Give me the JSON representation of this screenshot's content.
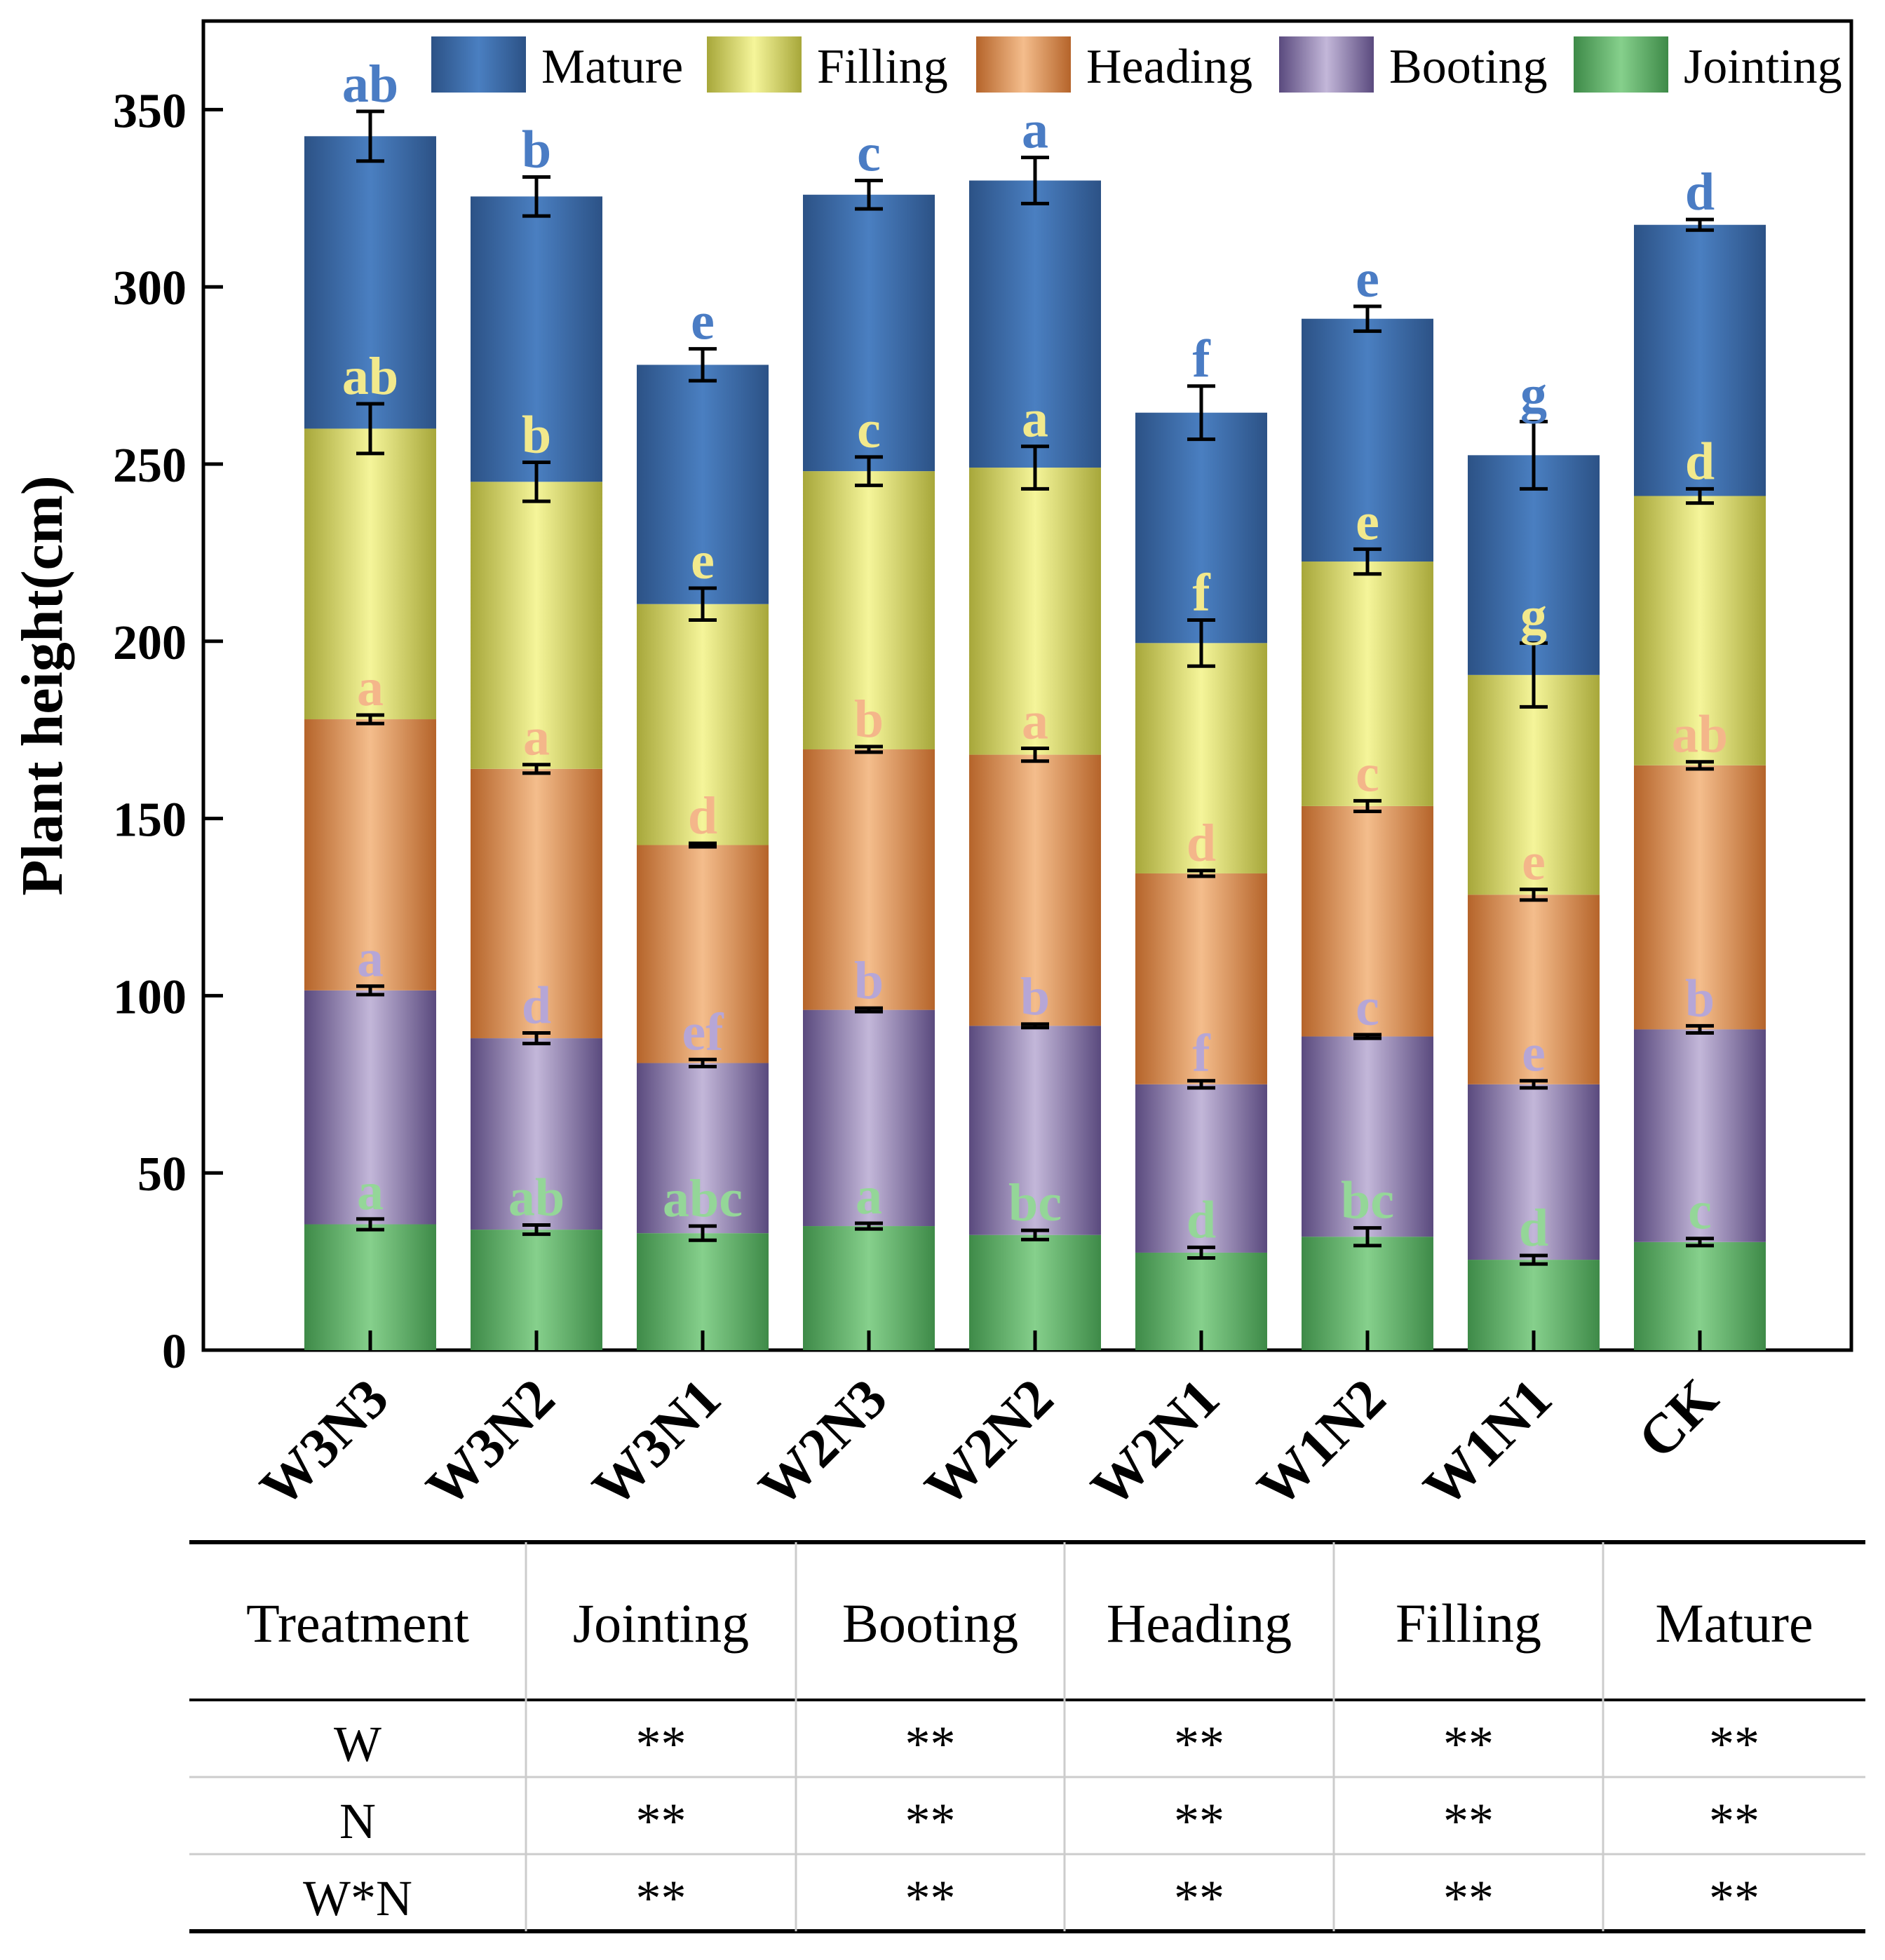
{
  "chart_data": {
    "type": "bar",
    "stacked": true,
    "ylabel": "Plant height(cm)",
    "xlabel": "",
    "ylim": [
      0,
      375
    ],
    "yticks": [
      0,
      50,
      100,
      150,
      200,
      250,
      300,
      350
    ],
    "categories": [
      "W3N3",
      "W3N2",
      "W3N1",
      "W2N3",
      "W2N2",
      "W2N1",
      "W1N2",
      "W1N1",
      "CK"
    ],
    "legend_position": "top",
    "series": [
      {
        "name": "Jointing",
        "color_dark": "#3e8a48",
        "color_light": "#86d08c",
        "label_color": "#94d698",
        "values": [
          35.5,
          34,
          33,
          35,
          32.5,
          27.5,
          32,
          25.5,
          30.5
        ],
        "errors": [
          1.5,
          1.3,
          2,
          0.8,
          1.3,
          1.5,
          2.5,
          1.2,
          1
        ],
        "letters": [
          "a",
          "ab",
          "abc",
          "a",
          "bc",
          "d",
          "bc",
          "d",
          "c"
        ]
      },
      {
        "name": "Booting",
        "color_dark": "#5a4a7e",
        "color_light": "#c3b7d9",
        "label_color": "#b6a6d6",
        "values": [
          66,
          54,
          48,
          61,
          59,
          47.5,
          56.5,
          49.5,
          60
        ],
        "errors": [
          1.2,
          1.5,
          1,
          0.5,
          0.5,
          1,
          0.5,
          1,
          1
        ],
        "letters": [
          "a",
          "d",
          "ef",
          "b",
          "b",
          "f",
          "c",
          "e",
          "b"
        ]
      },
      {
        "name": "Heading",
        "color_dark": "#b5642a",
        "color_light": "#f4bd8c",
        "label_color": "#f4b68a",
        "values": [
          76.5,
          76,
          61.5,
          73.5,
          76.5,
          59.5,
          65,
          53.5,
          74.5
        ],
        "errors": [
          1.2,
          1.2,
          0.5,
          0.8,
          1.8,
          0.8,
          1.5,
          1.5,
          1
        ],
        "letters": [
          "a",
          "a",
          "d",
          "b",
          "a",
          "d",
          "c",
          "e",
          "ab"
        ]
      },
      {
        "name": "Filling",
        "color_dark": "#a7a73a",
        "color_light": "#f5f59a",
        "label_color": "#f2e98c",
        "values": [
          82,
          81,
          68,
          78.5,
          81,
          65,
          69,
          62,
          76
        ],
        "errors": [
          7,
          5.5,
          4.5,
          4,
          6,
          6.5,
          3.5,
          9,
          2
        ],
        "letters": [
          "ab",
          "b",
          "e",
          "c",
          "a",
          "f",
          "e",
          "g",
          "d"
        ]
      },
      {
        "name": "Mature",
        "color_dark": "#2c5286",
        "color_light": "#4a7fc1",
        "label_color": "#4a7cc4",
        "values": [
          82.5,
          80.5,
          67.5,
          78,
          81,
          65,
          68.5,
          62,
          76.5
        ],
        "errors": [
          7,
          5.5,
          4.5,
          4,
          6.5,
          7.5,
          3.5,
          9.5,
          1.5
        ],
        "letters": [
          "ab",
          "b",
          "e",
          "c",
          "a",
          "f",
          "e",
          "g",
          "d"
        ]
      }
    ]
  },
  "legend": {
    "items": [
      "Mature",
      "Filling",
      "Heading",
      "Booting",
      "Jointing"
    ]
  },
  "table": {
    "headers": [
      "Treatment",
      "Jointing",
      "Booting",
      "Heading",
      "Filling",
      "Mature"
    ],
    "rows": [
      [
        "W",
        "**",
        "**",
        "**",
        "**",
        "**"
      ],
      [
        "N",
        "**",
        "**",
        "**",
        "**",
        "**"
      ],
      [
        "W*N",
        "**",
        "**",
        "**",
        "**",
        "**"
      ]
    ]
  }
}
